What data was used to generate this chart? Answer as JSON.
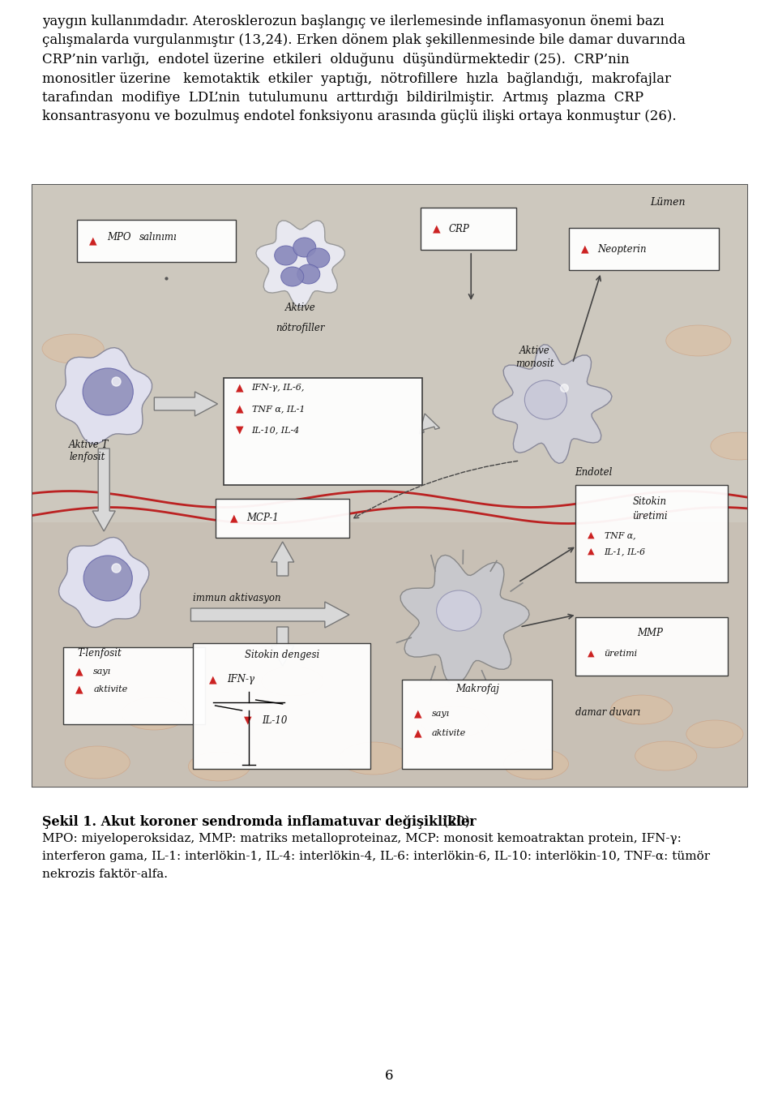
{
  "paragraph1_lines": [
    "yaygın kullanımdadır. Aterosklerozun başlangıç ve ilerlemesinde inflamasyonun önemi bazı",
    "çalışmalarda vurgulanmıştır (13,24). Erken dönem plak şekillenmesinde bile damar duvarında",
    "CRP’nin varlığı,  endotel üzerine  etkileri  olduğunu  düşündürmektedir (25).  CRP’nin",
    "monositler üzerine   kemotaktik  etkiler  yaptığı,  nötrofillere  hızla  bağlandığı,  makrofajlar",
    "tarafından  modifiye  LDL’nin  tutulumunu  arttırdığı  bildirilmiştir.  Artmış  plazma  CRP",
    "konsantrasyonu ve bozulmuş endotel fonksiyonu arasında güçlü ilişki ortaya konmuştur (26)."
  ],
  "caption_bold": "Şekil 1. Akut koroner sendromda inflamatuvar değişiklikler",
  "caption_ref": " (20)",
  "caption_line2": "MPO: miyeloperoksidaz, MMP: matriks metalloproteinaz, MCP: monosit kemoatraktan protein, IFN-γ:",
  "caption_line3": "interferon gama, IL-1: interlökin-1, IL-4: interlökin-4, IL-6: interlökin-6, IL-10: interlökin-10, TNF-α: tümör",
  "caption_line4": "nekrozis faktör-alfa.",
  "page_number": "6",
  "bg_color": "#ffffff",
  "text_color": "#000000",
  "fig_face": "#ddd6cc",
  "para_fontsize": 12.0,
  "cap_fontsize": 11.5,
  "cap_small_fontsize": 11.0
}
